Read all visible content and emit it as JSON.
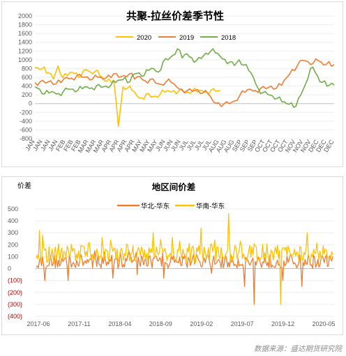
{
  "source": "数据来源：盛达期货研究院",
  "chart_data": [
    {
      "type": "line",
      "title": "共聚-拉丝价差季节性",
      "ylim": [
        -800,
        2000
      ],
      "yticks": [
        -800,
        -600,
        -400,
        -200,
        0,
        200,
        400,
        600,
        800,
        1000,
        1200,
        1400,
        1600,
        1800,
        2000
      ],
      "x_ticks": [
        "JAN",
        "JAN",
        "JAN",
        "JAN",
        "FEB",
        "FEB",
        "FEB",
        "MAR",
        "MAR",
        "MAR",
        "APR",
        "APR",
        "APR",
        "APR",
        "MAY",
        "MAY",
        "MAY",
        "JUN",
        "JUN",
        "JUN",
        "JUL",
        "JUL",
        "JUL",
        "JUL",
        "AUG",
        "AUG",
        "AUG",
        "SEP",
        "SEP",
        "SEP",
        "OCT",
        "OCT",
        "OCT",
        "OCT",
        "NOV",
        "NOV",
        "NOV",
        "DEC",
        "DEC",
        "DEC"
      ],
      "legend_position": "top",
      "series": [
        {
          "name": "2020",
          "color": "#ffc000",
          "values": [
            820,
            780,
            840,
            700,
            560,
            860,
            590,
            640,
            720,
            700,
            640,
            780,
            720,
            740,
            640,
            520,
            560,
            540,
            -520,
            380,
            360,
            300,
            180,
            130,
            220,
            150,
            170,
            210,
            260,
            280,
            300,
            290,
            270,
            260,
            300,
            260,
            300,
            270,
            310,
            280,
            300
          ]
        },
        {
          "name": "2019",
          "color": "#ed7d31",
          "values": [
            480,
            500,
            470,
            520,
            450,
            480,
            600,
            580,
            640,
            600,
            610,
            560,
            600,
            560,
            650,
            680,
            600,
            640,
            680,
            560,
            620,
            520,
            560,
            470,
            440,
            500,
            480,
            380,
            330,
            300,
            280,
            320,
            240,
            220,
            40,
            20,
            -10,
            0,
            60,
            180,
            260,
            330,
            300,
            350,
            340,
            400,
            350,
            420,
            600,
            780,
            870,
            990,
            960,
            920,
            980,
            880,
            960,
            890
          ]
        },
        {
          "name": "2018",
          "color": "#70ad47",
          "values": [
            380,
            330,
            220,
            240,
            260,
            230,
            280,
            330,
            330,
            300,
            340,
            380,
            360,
            410,
            370,
            400,
            420,
            480,
            540,
            600,
            500,
            680,
            700,
            640,
            760,
            800,
            720,
            960,
            1000,
            1100,
            1250,
            1040,
            1140,
            1050,
            980,
            1030,
            1150,
            1200,
            1160,
            1080,
            1010,
            950,
            870,
            1000,
            880,
            760,
            600,
            350,
            250,
            210,
            180,
            120,
            40,
            0,
            20,
            -50,
            200,
            450,
            800,
            720,
            500,
            520,
            420,
            420
          ]
        }
      ]
    },
    {
      "type": "line",
      "title": "地区间价差",
      "ylabel": "价差",
      "ylim": [
        -400,
        500
      ],
      "yticks": [
        -400,
        -300,
        -200,
        -100,
        0,
        100,
        200,
        300,
        400,
        500
      ],
      "ytick_labels": [
        "(400)",
        "(300)",
        "(200)",
        "(100)",
        "0",
        "100",
        "200",
        "300",
        "400",
        "500"
      ],
      "x": [
        "2017-06",
        "2017-11",
        "2018-04",
        "2018-09",
        "2019-02",
        "2019-07",
        "2019-12",
        "2020-05"
      ],
      "legend_position": "top-center",
      "series": [
        {
          "name": "华北-华东",
          "color": "#ed7d31",
          "base": 60,
          "amp": 60,
          "spikes": {
            "8": -100,
            "30": -100,
            "55": 150,
            "72": -80,
            "95": -50,
            "120": -80,
            "140": 120,
            "165": -40,
            "196": -150,
            "205": -300,
            "232": -100,
            "250": -150,
            "268": 80
          }
        },
        {
          "name": "华南-华东",
          "color": "#ffc000",
          "base": 130,
          "amp": 80,
          "spikes": {
            "3": 320,
            "6": 280,
            "62": 260,
            "110": 300,
            "128": 260,
            "155": 340,
            "168": 240,
            "181": 460,
            "192": 230,
            "230": -300,
            "238": 160,
            "255": 300
          }
        }
      ]
    }
  ]
}
